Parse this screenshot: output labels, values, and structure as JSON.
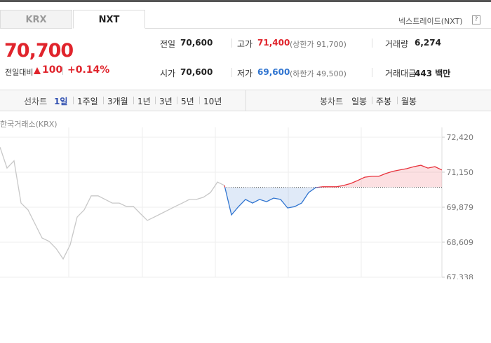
{
  "header": {
    "tabs": [
      "KRX",
      "NXT"
    ],
    "market_name": "넥스트레이드(NXT)",
    "help_icon": "?"
  },
  "quote": {
    "price": "70,700",
    "change_label": "전일대비",
    "change": "100",
    "change_rate": "+0.14%",
    "rows": [
      [
        {
          "label": "전일",
          "value": "70,600"
        },
        {
          "label": "고가",
          "value": "71,400",
          "note": "(상한가 91,700)"
        },
        {
          "label": "거래량",
          "value": "6,274"
        }
      ],
      [
        {
          "label": "시가",
          "value": "70,600"
        },
        {
          "label": "저가",
          "value": "69,600",
          "note": "(하한가 49,500)"
        },
        {
          "label": "거래대금",
          "value": "443 백만"
        }
      ]
    ]
  },
  "toolbar": {
    "line_label": "선차트",
    "line_periods": [
      "1일",
      "1주일",
      "3개월",
      "1년",
      "3년",
      "5년",
      "10년"
    ],
    "candle_label": "봉차트",
    "candle_periods": [
      "일봉",
      "주봉",
      "월봉"
    ]
  },
  "chart_data": {
    "type": "line",
    "subtitle": "한국거래소(KRX)",
    "categories": [
      null,
      null,
      null,
      null,
      null,
      null,
      null,
      null,
      null,
      null,
      null,
      null,
      null,
      null,
      null,
      null,
      null,
      null,
      null,
      null,
      null,
      null,
      null,
      null,
      null,
      null,
      null,
      null,
      null,
      null,
      null,
      null,
      null,
      null,
      null,
      null,
      null,
      null,
      null,
      null,
      null,
      null,
      null,
      null,
      null,
      null,
      null,
      null,
      null,
      null,
      null,
      null,
      null,
      null,
      null,
      null,
      null,
      null,
      null,
      null,
      null,
      null,
      null,
      null
    ],
    "baseline": 70600,
    "series": [
      {
        "color": "#c8c8c8",
        "values": [
          72060,
          71300,
          71560,
          70030,
          69780,
          69270,
          68760,
          68640,
          68380,
          68000,
          68510,
          69520,
          69780,
          70290,
          70290,
          70160,
          70030,
          70030,
          69910,
          69910,
          69650,
          69400,
          69520,
          69650,
          69780,
          69910,
          70030,
          70160,
          70160,
          70240,
          70410,
          70790,
          70670,
          null,
          null,
          null,
          null,
          null,
          null,
          null,
          null,
          null,
          null,
          null,
          null,
          null,
          null,
          null,
          null,
          null,
          null,
          null,
          null,
          null,
          null,
          null,
          null,
          null,
          null,
          null,
          null,
          null,
          null,
          null
        ]
      },
      {
        "color": "#e8323c",
        "below_color": "#2f74d0",
        "values": [
          null,
          null,
          null,
          null,
          null,
          null,
          null,
          null,
          null,
          null,
          null,
          null,
          null,
          null,
          null,
          null,
          null,
          null,
          null,
          null,
          null,
          null,
          null,
          null,
          null,
          null,
          null,
          null,
          null,
          null,
          null,
          null,
          70670,
          69600,
          69900,
          70160,
          70030,
          70160,
          70080,
          70210,
          70160,
          69850,
          69900,
          70030,
          70410,
          70590,
          70620,
          70620,
          70620,
          70670,
          70740,
          70850,
          70970,
          71000,
          71000,
          71100,
          71180,
          71230,
          71280,
          71350,
          71400,
          71300,
          71350,
          71230
        ]
      }
    ],
    "ylim": [
      67338,
      72420
    ],
    "yticks": [
      {
        "value": 72420,
        "label": "72,420"
      },
      {
        "value": 71150,
        "label": "71,150"
      },
      {
        "value": 69879,
        "label": "69,879"
      },
      {
        "value": 68609,
        "label": "68,609"
      },
      {
        "value": 67338,
        "label": "67,338"
      }
    ],
    "grid": true
  }
}
